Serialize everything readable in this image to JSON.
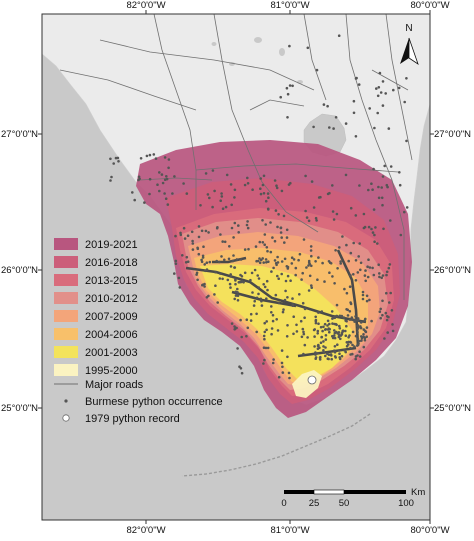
{
  "graticule": {
    "top": [
      "82°0'0\"W",
      "81°0'0\"W",
      "80°0'0\"W"
    ],
    "bottom": [
      "82°0'0\"W",
      "81°0'0\"W",
      "80°0'0\"W"
    ],
    "left": [
      "27°0'0\"N",
      "26°0'0\"N",
      "25°0'0\"N"
    ],
    "right": [
      "27°0'0\"N",
      "26°0'0\"N",
      "25°0'0\"N"
    ]
  },
  "north_arrow": {
    "label": "N"
  },
  "legend": {
    "periods": [
      {
        "label": "2019-2021",
        "color": "#b8567f"
      },
      {
        "label": "2016-2018",
        "color": "#cc5e7a"
      },
      {
        "label": "2013-2015",
        "color": "#d96c7c"
      },
      {
        "label": "2010-2012",
        "color": "#e2908a"
      },
      {
        "label": "2007-2009",
        "color": "#f3a57a"
      },
      {
        "label": "2004-2006",
        "color": "#f8c06a"
      },
      {
        "label": "2001-2003",
        "color": "#f3e35c"
      },
      {
        "label": "1995-2000",
        "color": "#fbf3c1"
      }
    ],
    "roads_label": "Major roads",
    "occurrence_label": "Burmese python occurrence",
    "record_label": "1979 python record"
  },
  "scale_bar": {
    "ticks": [
      "0",
      "25",
      "50",
      "100"
    ],
    "unit": "Km"
  },
  "colors": {
    "water": "#c9c9c9",
    "land": "#ebebeb",
    "roads": "#707070",
    "points": "#555555"
  }
}
